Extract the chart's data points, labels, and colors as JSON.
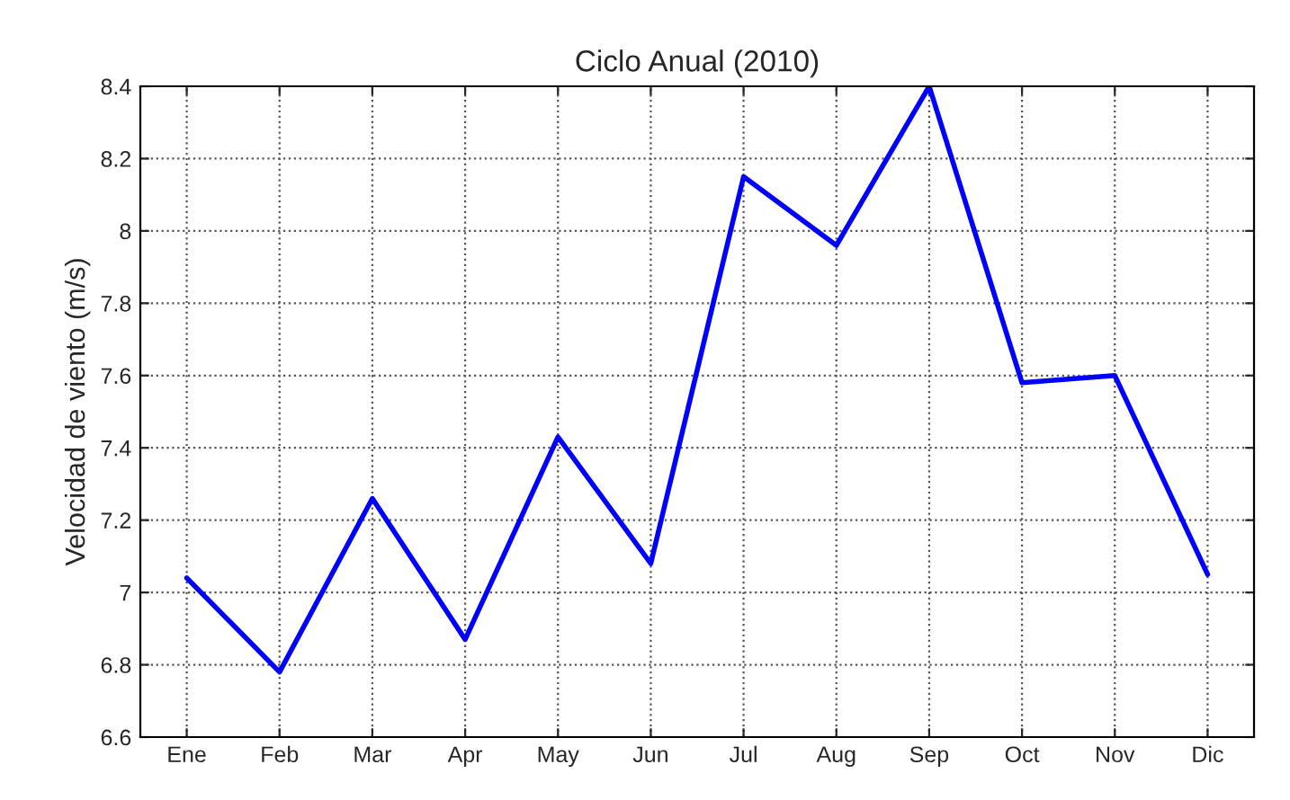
{
  "chart_data": {
    "type": "line",
    "title": "Ciclo Anual (2010)",
    "ylabel": "Velocidad de viento (m/s)",
    "categories": [
      "Ene",
      "Feb",
      "Mar",
      "Apr",
      "May",
      "Jun",
      "Jul",
      "Aug",
      "Sep",
      "Oct",
      "Nov",
      "Dic"
    ],
    "series": [
      {
        "color": "#0000ff",
        "values": [
          7.04,
          6.78,
          7.26,
          6.87,
          7.43,
          7.08,
          8.15,
          7.96,
          8.4,
          7.58,
          7.6,
          7.05
        ]
      }
    ],
    "ylim": [
      6.6,
      8.4
    ],
    "yticks": [
      {
        "value": 6.6,
        "label": "6.6"
      },
      {
        "value": 6.8,
        "label": "6.8"
      },
      {
        "value": 7,
        "label": "7"
      },
      {
        "value": 7.2,
        "label": "7.2"
      },
      {
        "value": 7.4,
        "label": "7.4"
      },
      {
        "value": 7.6,
        "label": "7.6"
      },
      {
        "value": 7.8,
        "label": "7.8"
      },
      {
        "value": 8,
        "label": "8"
      },
      {
        "value": 8.2,
        "label": "8.2"
      },
      {
        "value": 8.4,
        "label": "8.4"
      }
    ],
    "grid": true,
    "line_style": "solid"
  }
}
